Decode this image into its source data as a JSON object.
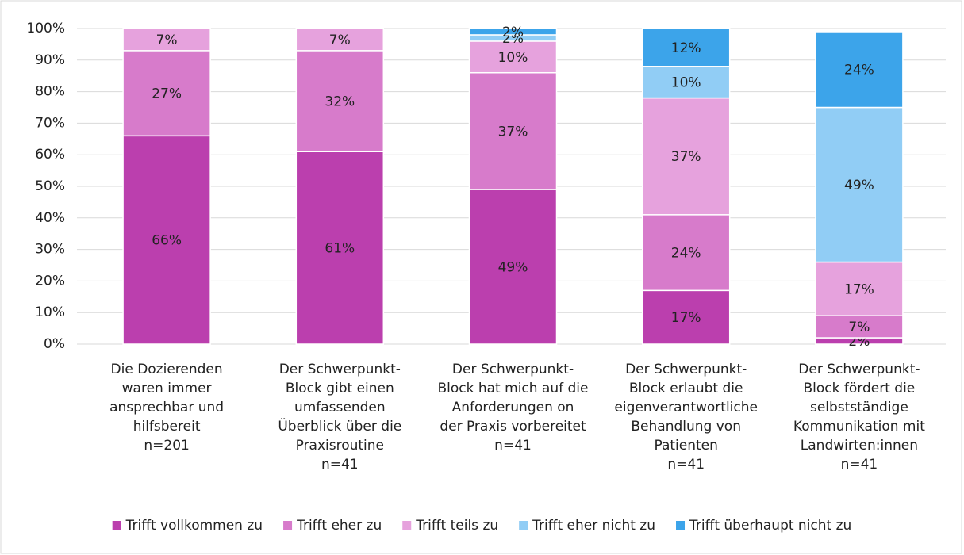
{
  "chart_data": {
    "type": "stacked_bar",
    "categories": [
      [
        "Die Dozierenden",
        "waren immer",
        "ansprechbar und",
        "hilfsbereit",
        "n=201"
      ],
      [
        "Der Schwerpunkt-",
        "Block gibt einen",
        "umfassenden",
        "Überblick über die",
        "Praxisroutine",
        "n=41"
      ],
      [
        "Der Schwerpunkt-",
        "Block hat mich auf die",
        "Anforderungen on",
        "der Praxis vorbereitet",
        "n=41"
      ],
      [
        "Der Schwerpunkt-",
        "Block erlaubt die",
        "eigenverantwortliche",
        "Behandlung von",
        "Patienten",
        "n=41"
      ],
      [
        "Der Schwerpunkt-",
        "Block fördert die",
        "selbstständige",
        "Kommunikation mit",
        "Landwirten:innen",
        "n=41"
      ]
    ],
    "series": [
      {
        "name": "Trifft vollkommen zu",
        "color": "#bb3fae",
        "values": [
          66,
          61,
          49,
          17,
          2
        ],
        "value_labels": [
          "66%",
          "61%",
          "49%",
          "17%",
          "2%"
        ]
      },
      {
        "name": "Trifft eher zu",
        "color": "#d77bcb",
        "values": [
          27,
          32,
          37,
          24,
          7
        ],
        "value_labels": [
          "27%",
          "32%",
          "37%",
          "24%",
          "7%"
        ]
      },
      {
        "name": "Trifft teils zu",
        "color": "#e6a2dd",
        "values": [
          7,
          7,
          10,
          37,
          17
        ],
        "value_labels": [
          "7%",
          "7%",
          "10%",
          "37%",
          "17%"
        ]
      },
      {
        "name": "Trifft eher nicht zu",
        "color": "#91cdf5",
        "values": [
          null,
          null,
          2,
          10,
          49
        ],
        "value_labels": [
          null,
          null,
          "2%",
          "10%",
          "49%"
        ]
      },
      {
        "name": "Trifft überhaupt nicht zu",
        "color": "#3ca4ea",
        "values": [
          null,
          null,
          2,
          12,
          24
        ],
        "value_labels": [
          null,
          null,
          "2%",
          "12%",
          "24%"
        ]
      }
    ],
    "ylim": [
      0,
      100
    ],
    "yticks": [
      {
        "value": 0,
        "label": "0%"
      },
      {
        "value": 10,
        "label": "10%"
      },
      {
        "value": 20,
        "label": "20%"
      },
      {
        "value": 30,
        "label": "30%"
      },
      {
        "value": 40,
        "label": "40%"
      },
      {
        "value": 50,
        "label": "50%"
      },
      {
        "value": 60,
        "label": "60%"
      },
      {
        "value": 70,
        "label": "70%"
      },
      {
        "value": 80,
        "label": "80%"
      },
      {
        "value": 90,
        "label": "90%"
      },
      {
        "value": 100,
        "label": "100%"
      }
    ],
    "grid": true,
    "legend": "bottom"
  }
}
